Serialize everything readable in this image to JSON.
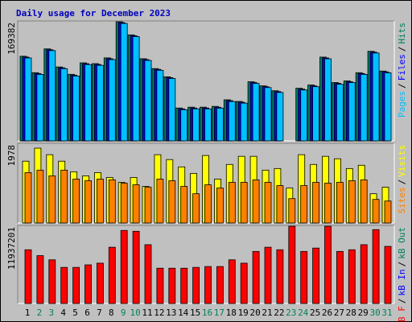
{
  "legend_separator": "/",
  "chart_data": [
    {
      "type": "bar",
      "title": "Daily usage for December 2023",
      "ylim": [
        0,
        169382
      ],
      "yticks": [
        169382
      ],
      "series": [
        {
          "name": "Pages",
          "color": "#00c0ff",
          "values": [
            117100,
            93900,
            127500,
            102000,
            91600,
            107800,
            106700,
            114800,
            165800,
            147300,
            113600,
            99700,
            88100,
            44000,
            45200,
            45200,
            46300,
            55600,
            53300,
            81100,
            75300,
            68400,
            0,
            71900,
            76500,
            115900,
            80000,
            82300,
            93900,
            124100,
            96200
          ]
        },
        {
          "name": "Files",
          "color": "#0000ff",
          "values": [
            118300,
            95100,
            128700,
            103200,
            92800,
            109000,
            107900,
            116000,
            167000,
            148500,
            114800,
            100900,
            89300,
            45200,
            46400,
            46400,
            47500,
            56800,
            54500,
            82300,
            76500,
            69600,
            0,
            73100,
            77700,
            117100,
            81200,
            83500,
            95100,
            125300,
            97400
          ]
        },
        {
          "name": "Hits",
          "color": "#00805c",
          "values": [
            119500,
            96300,
            129900,
            104400,
            94000,
            110200,
            109100,
            117200,
            168200,
            149700,
            116000,
            102100,
            90500,
            46400,
            47600,
            47600,
            48700,
            58000,
            55700,
            83500,
            77700,
            70800,
            0,
            74300,
            78900,
            118300,
            82400,
            84700,
            96300,
            126500,
            98600
          ]
        }
      ]
    },
    {
      "type": "bar",
      "ylim": [
        0,
        1978
      ],
      "yticks": [
        1978
      ],
      "series": [
        {
          "name": "Sites",
          "color": "#ff8000",
          "values": [
            1251,
            1312,
            1170,
            1312,
            1090,
            1049,
            1090,
            1070,
            989,
            948,
            888,
            1090,
            1049,
            908,
            726,
            948,
            868,
            1009,
            1009,
            1070,
            1009,
            928,
            605,
            928,
            1009,
            989,
            1009,
            1049,
            1070,
            585,
            545
          ]
        },
        {
          "name": "Visits",
          "color": "#ffff00",
          "values": [
            1534,
            1857,
            1695,
            1534,
            1271,
            1170,
            1251,
            1130,
            1009,
            1130,
            908,
            1695,
            1574,
            1392,
            1231,
            1675,
            1090,
            1453,
            1655,
            1655,
            1312,
            1352,
            868,
            1695,
            1453,
            1655,
            1594,
            1352,
            1433,
            726,
            888
          ]
        }
      ]
    },
    {
      "type": "bar",
      "ylim": [
        0,
        11937201
      ],
      "yticks": [
        11937201
      ],
      "categories": [
        "1",
        "2",
        "3",
        "4",
        "5",
        "6",
        "7",
        "8",
        "9",
        "10",
        "11",
        "12",
        "13",
        "14",
        "15",
        "16",
        "17",
        "18",
        "19",
        "20",
        "21",
        "22",
        "23",
        "24",
        "25",
        "26",
        "27",
        "28",
        "29",
        "30",
        "31"
      ],
      "category_colors": [
        "#000000",
        "#00805c",
        "#00805c",
        "#000000",
        "#000000",
        "#000000",
        "#000000",
        "#000000",
        "#00805c",
        "#00805c",
        "#000000",
        "#000000",
        "#000000",
        "#000000",
        "#000000",
        "#00805c",
        "#00805c",
        "#000000",
        "#000000",
        "#000000",
        "#000000",
        "#000000",
        "#00805c",
        "#00805c",
        "#000000",
        "#000000",
        "#000000",
        "#000000",
        "#000000",
        "#00805c",
        "#00805c"
      ],
      "series": [
        {
          "name": "kB F",
          "color": "#ff0000",
          "values": [
            8214800,
            7316300,
            6674600,
            5519400,
            5519400,
            5904400,
            6161100,
            8599900,
            11167100,
            11038700,
            8985000,
            5391000,
            5391000,
            5391000,
            5519400,
            5647700,
            5647700,
            6674600,
            6161100,
            7958100,
            8599900,
            8214800,
            11808800,
            7958100,
            8471600,
            11808800,
            7958100,
            8214800,
            8985000,
            11295400,
            8728300
          ]
        },
        {
          "name": "kB In",
          "color": "#0000ff",
          "values": [
            0,
            0,
            0,
            0,
            0,
            0,
            0,
            0,
            0,
            0,
            0,
            0,
            0,
            0,
            0,
            0,
            0,
            0,
            0,
            0,
            0,
            0,
            0,
            0,
            0,
            0,
            0,
            0,
            0,
            0,
            0
          ]
        },
        {
          "name": "kB Out",
          "color": "#00805c",
          "values": [
            0,
            0,
            0,
            0,
            0,
            0,
            0,
            0,
            0,
            0,
            0,
            0,
            0,
            0,
            0,
            0,
            0,
            0,
            0,
            0,
            0,
            0,
            0,
            0,
            0,
            0,
            0,
            0,
            0,
            0,
            0
          ]
        }
      ]
    }
  ]
}
